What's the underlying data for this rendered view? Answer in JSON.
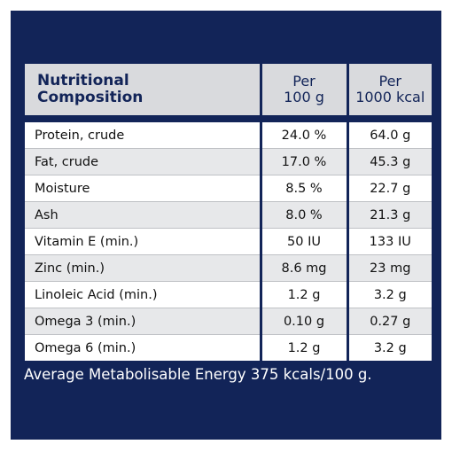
{
  "table": {
    "header": {
      "label_line1": "Nutritional",
      "label_line2": "Composition",
      "col1_line1": "Per",
      "col1_line2": "100 g",
      "col2_line1": "Per",
      "col2_line2": "1000 kcal"
    },
    "rows": [
      {
        "name": "Protein, crude",
        "per100g": "24.0 %",
        "per1000kcal": "64.0 g"
      },
      {
        "name": "Fat, crude",
        "per100g": "17.0 %",
        "per1000kcal": "45.3 g"
      },
      {
        "name": "Moisture",
        "per100g": "8.5 %",
        "per1000kcal": "22.7 g"
      },
      {
        "name": "Ash",
        "per100g": "8.0 %",
        "per1000kcal": "21.3 g"
      },
      {
        "name": "Vitamin E (min.)",
        "per100g": "50 IU",
        "per1000kcal": "133 IU"
      },
      {
        "name": "Zinc (min.)",
        "per100g": "8.6 mg",
        "per1000kcal": "23 mg"
      },
      {
        "name": "Linoleic Acid (min.)",
        "per100g": "1.2 g",
        "per1000kcal": "3.2 g"
      },
      {
        "name": "Omega 3 (min.)",
        "per100g": "0.10 g",
        "per1000kcal": "0.27 g"
      },
      {
        "name": "Omega 6 (min.)",
        "per100g": "1.2 g",
        "per1000kcal": "3.2 g"
      }
    ]
  },
  "footer": {
    "energy_text": "Average Metabolisable Energy 375 kcals/100 g."
  },
  "colors": {
    "background": "#122458",
    "header_fill": "#d9dadd",
    "row_alt_fill": "#e7e8ea"
  }
}
